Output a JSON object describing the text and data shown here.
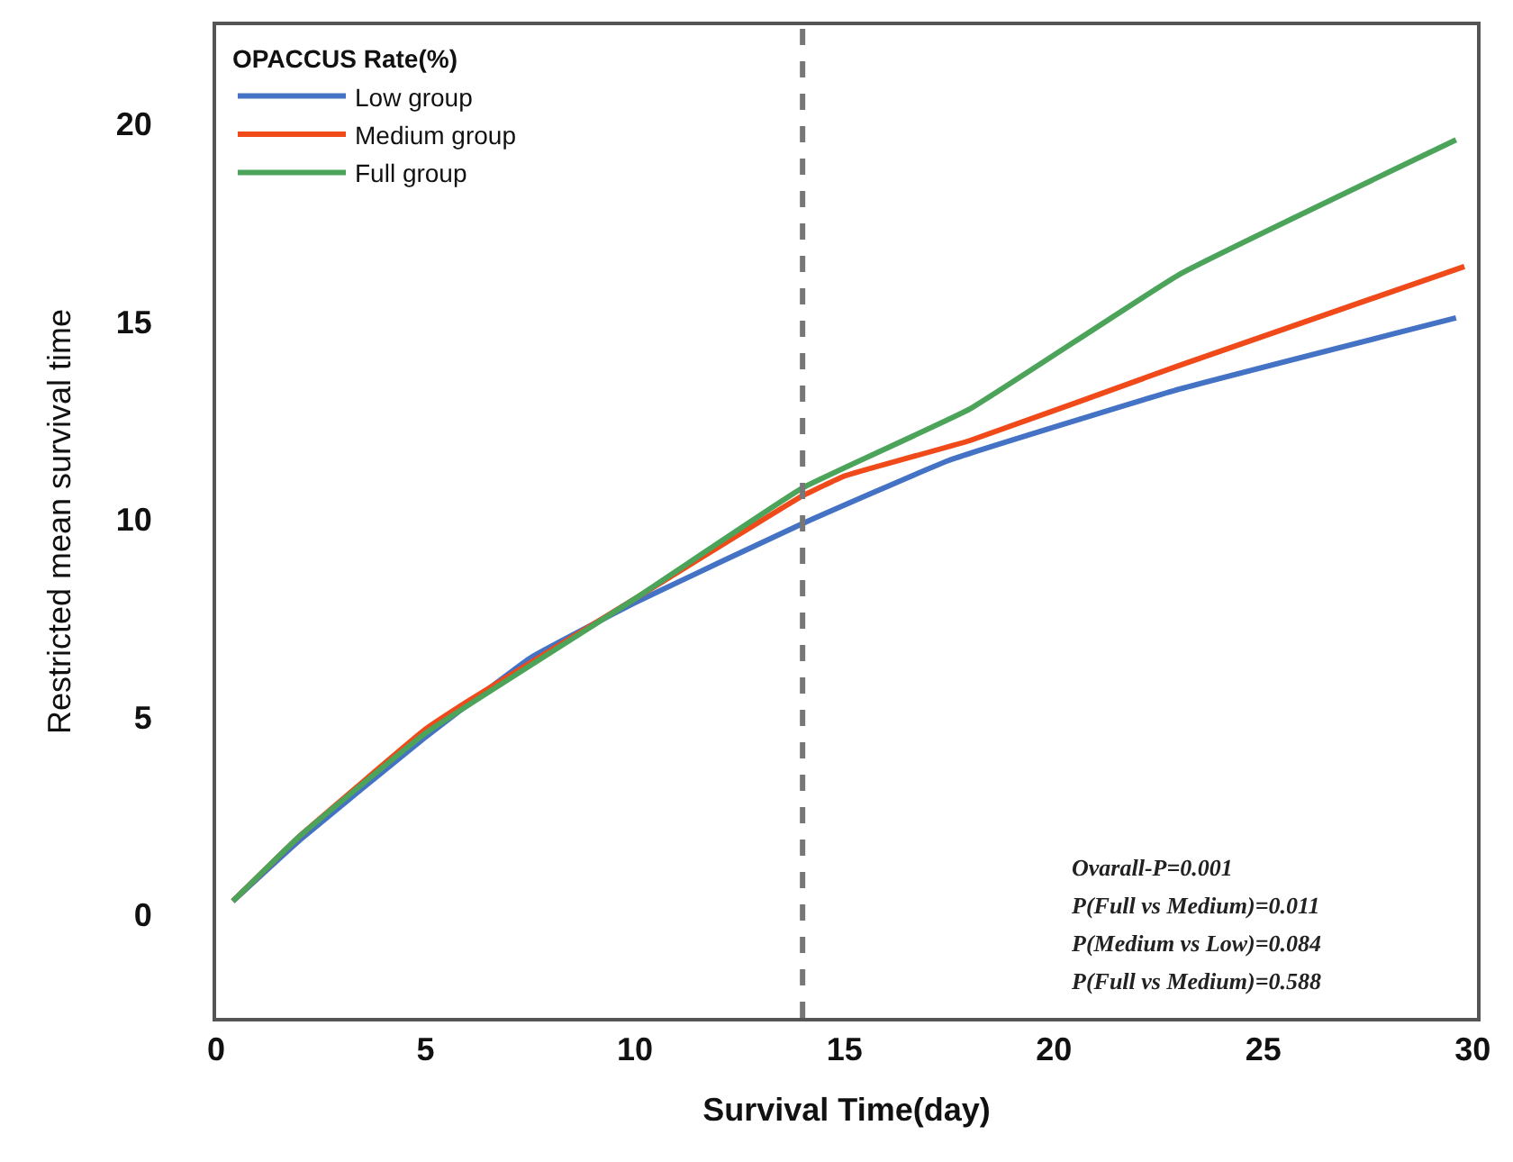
{
  "chart_data": {
    "type": "line",
    "xlabel": "Survival Time(day)",
    "ylabel": "Restricted mean survival time",
    "legend_title": "OPACCUS Rate(%)",
    "xlim": [
      0,
      30.1
    ],
    "xticks": [
      0,
      5,
      10,
      15,
      20,
      25,
      30
    ],
    "ylim": [
      -2.6,
      22.5
    ],
    "yticks": [
      0,
      5,
      10,
      15,
      20
    ],
    "legend": "top left",
    "marker": "none",
    "line_style": "solid",
    "series": [
      {
        "name": "Low group",
        "color": "#4472c4",
        "x": [
          0.4,
          2,
          5,
          7.5,
          10,
          14,
          17.5,
          23,
          29.6
        ],
        "values": [
          0.35,
          1.9,
          4.5,
          6.5,
          7.9,
          9.9,
          11.5,
          13.3,
          15.1
        ]
      },
      {
        "name": "Medium group",
        "color": "#f04a1a",
        "x": [
          0.4,
          2,
          5,
          6,
          10,
          14,
          15,
          18,
          23,
          29.8
        ],
        "values": [
          0.35,
          2.0,
          4.7,
          5.4,
          8.0,
          10.6,
          11.1,
          12.0,
          13.9,
          16.4
        ]
      },
      {
        "name": "Full group",
        "color": "#4ca35a",
        "x": [
          0.4,
          2,
          5,
          10,
          14,
          18,
          23,
          29.6
        ],
        "values": [
          0.35,
          2.0,
          4.6,
          8.0,
          10.8,
          12.8,
          16.2,
          19.6
        ]
      }
    ],
    "ref_lines": [
      {
        "axis": "x",
        "value": 14,
        "color": "#777777",
        "line_style": "dashed"
      }
    ],
    "annotations": [
      "Ovarall-P=0.001",
      "P(Full vs Medium)=0.011",
      "P(Medium vs Low)=0.084",
      "P(Full vs Medium)=0.588"
    ]
  }
}
